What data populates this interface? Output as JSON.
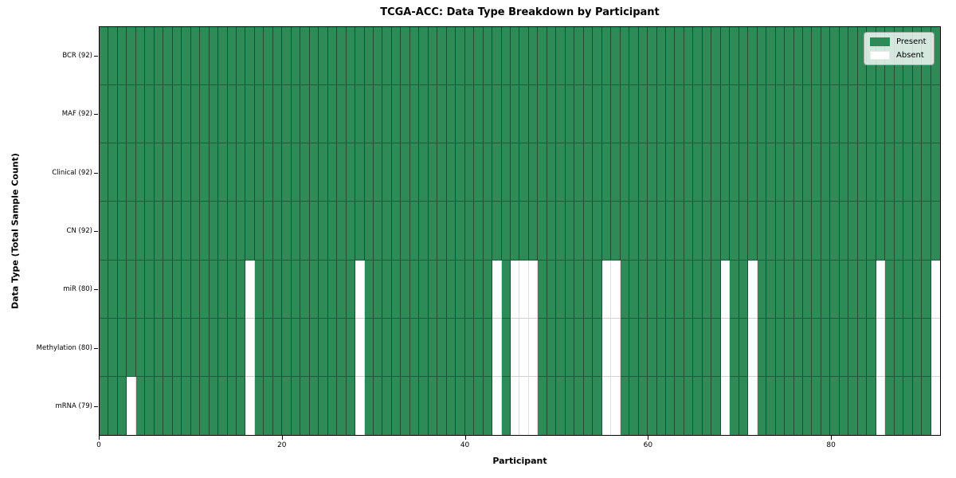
{
  "title": "TCGA-ACC: Data Type Breakdown by Participant",
  "xlabel": "Participant",
  "ylabel": "Data Type (Total Sample Count)",
  "legend": {
    "present_label": "Present",
    "absent_label": "Absent"
  },
  "colors": {
    "present": "#2e8b57",
    "absent": "#ffffff"
  },
  "chart_data": {
    "type": "heatmap",
    "title": "TCGA-ACC: Data Type Breakdown by Participant",
    "xlabel": "Participant",
    "ylabel": "Data Type (Total Sample Count)",
    "legend": [
      "Present",
      "Absent"
    ],
    "legend_position": "upper right",
    "n_participants": 92,
    "x_range": [
      0,
      92
    ],
    "x_ticks": [
      0,
      20,
      40,
      60,
      80
    ],
    "cell_values": {
      "present": 1,
      "absent": 0
    },
    "rows": [
      {
        "label": "BCR (92)",
        "data_type": "BCR",
        "total_sample_count": 92,
        "absent_participants": []
      },
      {
        "label": "MAF (92)",
        "data_type": "MAF",
        "total_sample_count": 92,
        "absent_participants": []
      },
      {
        "label": "Clinical (92)",
        "data_type": "Clinical",
        "total_sample_count": 92,
        "absent_participants": []
      },
      {
        "label": "CN (92)",
        "data_type": "CN",
        "total_sample_count": 92,
        "absent_participants": []
      },
      {
        "label": "miR (80)",
        "data_type": "miR",
        "total_sample_count": 80,
        "absent_participants": [
          16,
          28,
          43,
          45,
          46,
          47,
          55,
          56,
          68,
          71,
          85,
          91
        ]
      },
      {
        "label": "Methylation (80)",
        "data_type": "Methylation",
        "total_sample_count": 80,
        "absent_participants": [
          16,
          28,
          43,
          45,
          46,
          47,
          55,
          56,
          68,
          71,
          85,
          91
        ]
      },
      {
        "label": "mRNA (79)",
        "data_type": "mRNA",
        "total_sample_count": 79,
        "absent_participants": [
          3,
          16,
          28,
          43,
          45,
          46,
          47,
          55,
          56,
          68,
          71,
          85,
          91
        ]
      }
    ]
  }
}
